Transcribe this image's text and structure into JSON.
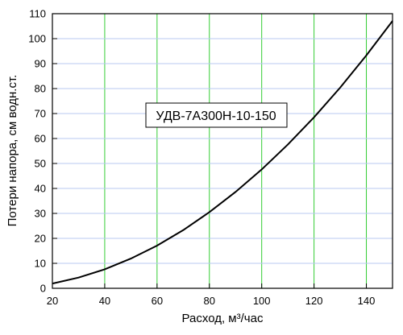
{
  "chart_data": {
    "type": "line",
    "x_label": "Расход, м³/час",
    "y_label": "Потери напора, см водн.ст.",
    "annotation": "УДВ-7А300Н-10-150",
    "x": [
      20,
      30,
      40,
      50,
      60,
      70,
      80,
      90,
      100,
      110,
      120,
      130,
      140,
      150
    ],
    "series": [
      {
        "color": "#000000",
        "values": [
          1.9,
          4.3,
          7.6,
          11.9,
          17.1,
          23.3,
          30.5,
          38.6,
          47.6,
          57.6,
          68.5,
          80.4,
          93.3,
          107.1
        ]
      }
    ],
    "xlim": [
      20,
      150
    ],
    "xticks": [
      20,
      40,
      60,
      80,
      100,
      120,
      140
    ],
    "ylim": [
      0,
      110
    ],
    "yticks": [
      0,
      10,
      20,
      30,
      40,
      50,
      60,
      70,
      80,
      90,
      100,
      110
    ],
    "grid": true,
    "x_grid_color": "#33cc33",
    "y_grid_color": "#b8c8f0"
  }
}
